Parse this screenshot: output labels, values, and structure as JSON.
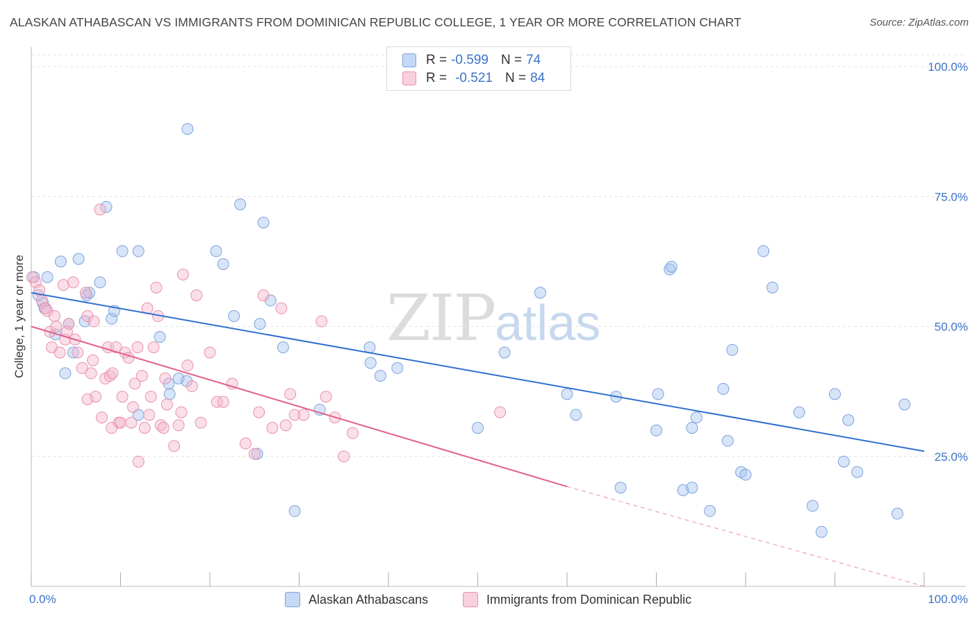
{
  "header": {
    "title": "ALASKAN ATHABASCAN VS IMMIGRANTS FROM DOMINICAN REPUBLIC COLLEGE, 1 YEAR OR MORE CORRELATION CHART",
    "source": "Source: ZipAtlas.com"
  },
  "legend": {
    "r_label": "R =",
    "n_label": "N =",
    "series": [
      {
        "r": "-0.599",
        "n": "74",
        "color": "#a8c4ee"
      },
      {
        "r": "-0.521",
        "n": "84",
        "color": "#f4b8cb"
      }
    ]
  },
  "watermark": {
    "zip": "ZIP",
    "atlas": "atlas"
  },
  "chart_data": {
    "type": "scatter",
    "title": "ALASKAN ATHABASCAN VS IMMIGRANTS FROM DOMINICAN REPUBLIC COLLEGE, 1 YEAR OR MORE CORRELATION CHART",
    "xlabel": "",
    "ylabel": "College, 1 year or more",
    "xlim": [
      0,
      100
    ],
    "ylim": [
      0,
      100
    ],
    "x_tick_labels": [
      "0.0%",
      "100.0%"
    ],
    "y_ticks": [
      25,
      50,
      75,
      100
    ],
    "y_tick_labels": [
      "25.0%",
      "50.0%",
      "75.0%",
      "100.0%"
    ],
    "grid": true,
    "legend_position": "top-center",
    "series": [
      {
        "name": "Alaskan Athabascans",
        "color": "#a8c4ee",
        "stroke": "#7ba3dc",
        "trend_color": "#2f6fcf",
        "trend": {
          "x0": 0,
          "y0": 56.5,
          "x1": 100,
          "y1": 26.0
        },
        "points": [
          [
            0.3,
            59.5
          ],
          [
            0.8,
            56.0
          ],
          [
            1.3,
            54.5
          ],
          [
            1.8,
            59.5
          ],
          [
            1.5,
            53.5
          ],
          [
            2.7,
            48.5
          ],
          [
            3.3,
            62.5
          ],
          [
            3.8,
            41.0
          ],
          [
            4.2,
            50.5
          ],
          [
            4.7,
            45.0
          ],
          [
            5.3,
            63.0
          ],
          [
            6.0,
            51.0
          ],
          [
            6.2,
            56.0
          ],
          [
            6.5,
            56.5
          ],
          [
            7.7,
            58.5
          ],
          [
            8.4,
            73.0
          ],
          [
            9.0,
            51.5
          ],
          [
            9.3,
            53.0
          ],
          [
            10.2,
            64.5
          ],
          [
            12.0,
            64.5
          ],
          [
            12.0,
            33.0
          ],
          [
            14.4,
            48.0
          ],
          [
            15.5,
            37.0
          ],
          [
            15.4,
            39.0
          ],
          [
            16.5,
            40.0
          ],
          [
            17.4,
            39.5
          ],
          [
            17.5,
            88.0
          ],
          [
            20.7,
            64.5
          ],
          [
            21.5,
            62.0
          ],
          [
            22.7,
            52.0
          ],
          [
            23.4,
            73.5
          ],
          [
            25.3,
            25.5
          ],
          [
            25.6,
            50.5
          ],
          [
            26.0,
            70.0
          ],
          [
            26.8,
            55.0
          ],
          [
            28.2,
            46.0
          ],
          [
            29.5,
            14.5
          ],
          [
            32.3,
            34.0
          ],
          [
            37.9,
            46.0
          ],
          [
            38.0,
            43.0
          ],
          [
            39.1,
            40.5
          ],
          [
            41.0,
            42.0
          ],
          [
            50.0,
            30.5
          ],
          [
            53.0,
            45.0
          ],
          [
            57.0,
            56.5
          ],
          [
            60.0,
            37.0
          ],
          [
            61.0,
            33.0
          ],
          [
            65.5,
            36.5
          ],
          [
            66.0,
            19.0
          ],
          [
            70.0,
            30.0
          ],
          [
            70.2,
            37.0
          ],
          [
            71.5,
            61.0
          ],
          [
            71.7,
            61.5
          ],
          [
            73.0,
            18.5
          ],
          [
            74.0,
            19.0
          ],
          [
            74.0,
            30.5
          ],
          [
            74.5,
            32.5
          ],
          [
            76.0,
            14.5
          ],
          [
            77.5,
            38.0
          ],
          [
            78.0,
            28.0
          ],
          [
            78.5,
            45.5
          ],
          [
            79.5,
            22.0
          ],
          [
            80.0,
            21.5
          ],
          [
            82.0,
            64.5
          ],
          [
            83.0,
            57.5
          ],
          [
            86.0,
            33.5
          ],
          [
            87.5,
            15.5
          ],
          [
            88.5,
            10.5
          ],
          [
            90.0,
            37.0
          ],
          [
            91.0,
            24.0
          ],
          [
            91.5,
            32.0
          ],
          [
            92.5,
            22.0
          ],
          [
            97.0,
            14.0
          ],
          [
            97.8,
            35.0
          ]
        ]
      },
      {
        "name": "Immigrants from Dominican Republic",
        "color": "#f4b8cb",
        "stroke": "#e890ae",
        "trend_color": "#e0608c",
        "trend": {
          "x0": 0,
          "y0": 50.0,
          "x1": 60,
          "y1": 19.2
        },
        "trend_dashed": {
          "x0": 60,
          "y0": 19.2,
          "x1": 100,
          "y1": 0
        },
        "points": [
          [
            0.1,
            59.5
          ],
          [
            0.5,
            58.5
          ],
          [
            0.9,
            57.0
          ],
          [
            1.2,
            55.0
          ],
          [
            1.6,
            53.5
          ],
          [
            1.8,
            53.0
          ],
          [
            2.1,
            49.0
          ],
          [
            2.3,
            46.0
          ],
          [
            2.6,
            52.0
          ],
          [
            2.8,
            50.0
          ],
          [
            3.2,
            45.0
          ],
          [
            3.6,
            58.0
          ],
          [
            3.8,
            47.5
          ],
          [
            4.2,
            50.5
          ],
          [
            4.7,
            58.5
          ],
          [
            4.9,
            47.5
          ],
          [
            5.2,
            45.0
          ],
          [
            5.7,
            42.0
          ],
          [
            6.1,
            56.5
          ],
          [
            6.3,
            52.0
          ],
          [
            6.7,
            41.0
          ],
          [
            6.9,
            43.5
          ],
          [
            7.0,
            51.0
          ],
          [
            7.2,
            36.5
          ],
          [
            7.7,
            72.5
          ],
          [
            7.9,
            32.5
          ],
          [
            8.3,
            40.0
          ],
          [
            8.6,
            46.0
          ],
          [
            8.8,
            40.5
          ],
          [
            9.1,
            41.0
          ],
          [
            9.5,
            46.0
          ],
          [
            9.8,
            31.5
          ],
          [
            10.0,
            31.5
          ],
          [
            10.2,
            36.5
          ],
          [
            10.5,
            45.0
          ],
          [
            10.9,
            44.0
          ],
          [
            11.2,
            31.5
          ],
          [
            11.4,
            34.5
          ],
          [
            11.9,
            46.0
          ],
          [
            11.6,
            39.0
          ],
          [
            12.0,
            24.0
          ],
          [
            12.4,
            40.5
          ],
          [
            12.7,
            30.5
          ],
          [
            13.0,
            53.5
          ],
          [
            13.4,
            36.5
          ],
          [
            13.7,
            46.0
          ],
          [
            14.0,
            57.5
          ],
          [
            14.2,
            52.0
          ],
          [
            14.5,
            31.0
          ],
          [
            14.8,
            30.5
          ],
          [
            15.0,
            40.0
          ],
          [
            15.2,
            35.0
          ],
          [
            16.0,
            27.0
          ],
          [
            16.5,
            31.0
          ],
          [
            16.8,
            33.5
          ],
          [
            17.0,
            60.0
          ],
          [
            17.5,
            42.5
          ],
          [
            18.0,
            38.5
          ],
          [
            18.5,
            56.0
          ],
          [
            19.0,
            31.5
          ],
          [
            20.0,
            45.0
          ],
          [
            20.8,
            35.5
          ],
          [
            21.5,
            35.5
          ],
          [
            22.5,
            39.0
          ],
          [
            24.0,
            27.5
          ],
          [
            25.0,
            25.5
          ],
          [
            25.5,
            33.5
          ],
          [
            26.0,
            56.0
          ],
          [
            27.0,
            30.5
          ],
          [
            28.0,
            53.5
          ],
          [
            28.5,
            31.0
          ],
          [
            29.0,
            37.0
          ],
          [
            29.5,
            33.0
          ],
          [
            30.5,
            33.0
          ],
          [
            32.5,
            51.0
          ],
          [
            33.0,
            36.5
          ],
          [
            34.0,
            32.5
          ],
          [
            35.0,
            25.0
          ],
          [
            36.0,
            29.5
          ],
          [
            52.5,
            33.5
          ],
          [
            13.2,
            33.0
          ],
          [
            6.3,
            36.0
          ],
          [
            9.0,
            30.5
          ],
          [
            4.0,
            49.0
          ]
        ]
      }
    ]
  }
}
